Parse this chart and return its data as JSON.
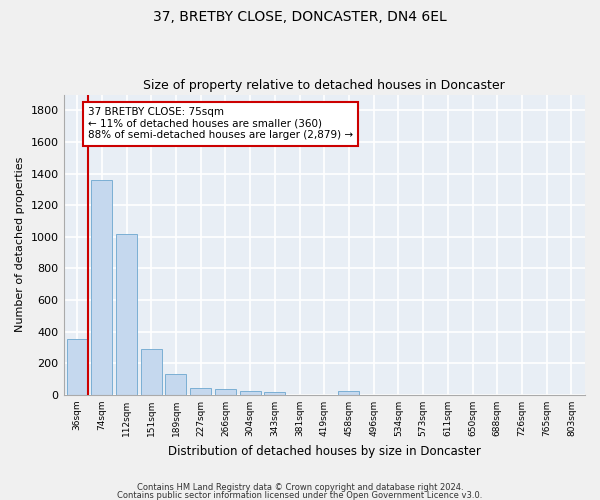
{
  "title": "37, BRETBY CLOSE, DONCASTER, DN4 6EL",
  "subtitle": "Size of property relative to detached houses in Doncaster",
  "xlabel": "Distribution of detached houses by size in Doncaster",
  "ylabel": "Number of detached properties",
  "categories": [
    "36sqm",
    "74sqm",
    "112sqm",
    "151sqm",
    "189sqm",
    "227sqm",
    "266sqm",
    "304sqm",
    "343sqm",
    "381sqm",
    "419sqm",
    "458sqm",
    "496sqm",
    "534sqm",
    "573sqm",
    "611sqm",
    "650sqm",
    "688sqm",
    "726sqm",
    "765sqm",
    "803sqm"
  ],
  "values": [
    355,
    1360,
    1020,
    290,
    130,
    45,
    35,
    25,
    20,
    0,
    0,
    25,
    0,
    0,
    0,
    0,
    0,
    0,
    0,
    0,
    0
  ],
  "bar_color": "#c5d8ee",
  "bar_edge_color": "#7bafd4",
  "property_line_color": "#cc0000",
  "annotation_text": "37 BRETBY CLOSE: 75sqm\n← 11% of detached houses are smaller (360)\n88% of semi-detached houses are larger (2,879) →",
  "annotation_box_color": "#ffffff",
  "annotation_box_edge_color": "#cc0000",
  "ylim": [
    0,
    1900
  ],
  "yticks": [
    0,
    200,
    400,
    600,
    800,
    1000,
    1200,
    1400,
    1600,
    1800
  ],
  "background_color": "#e8eef5",
  "grid_color": "#ffffff",
  "footer_line1": "Contains HM Land Registry data © Crown copyright and database right 2024.",
  "footer_line2": "Contains public sector information licensed under the Open Government Licence v3.0.",
  "title_fontsize": 10,
  "subtitle_fontsize": 9,
  "fig_bg_color": "#f0f0f0"
}
